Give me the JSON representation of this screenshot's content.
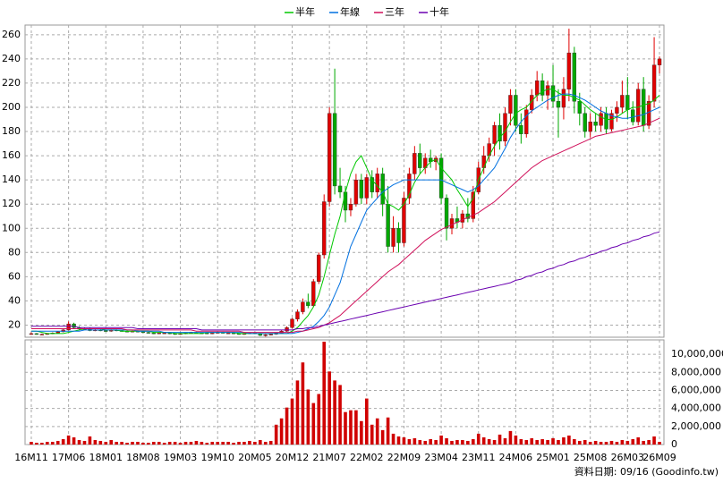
{
  "chart_data": {
    "type": "candlestick",
    "categories": [
      "16M11",
      null,
      null,
      null,
      null,
      null,
      null,
      "17M06",
      null,
      null,
      null,
      null,
      null,
      null,
      "18M01",
      null,
      null,
      null,
      null,
      null,
      null,
      "18M08",
      null,
      null,
      null,
      null,
      null,
      null,
      "19M03",
      null,
      null,
      null,
      null,
      null,
      null,
      "19M10",
      null,
      null,
      null,
      null,
      null,
      null,
      "20M05",
      null,
      null,
      null,
      null,
      null,
      null,
      "20M12",
      null,
      null,
      null,
      null,
      null,
      null,
      "21M07",
      null,
      null,
      null,
      null,
      null,
      null,
      "22M02",
      null,
      null,
      null,
      null,
      null,
      null,
      "22M09",
      null,
      null,
      null,
      null,
      null,
      null,
      "23M04",
      null,
      null,
      null,
      null,
      null,
      null,
      "23M11",
      null,
      null,
      null,
      null,
      null,
      null,
      "24M06",
      null,
      null,
      null,
      null,
      null,
      null,
      "25M01",
      null,
      null,
      null,
      null,
      null,
      null,
      "25M08",
      null,
      null,
      null,
      null,
      null,
      null,
      "26M03",
      null,
      null,
      null,
      null,
      null,
      "26M09"
    ],
    "ohlc": [
      [
        13,
        14,
        12,
        13
      ],
      [
        13,
        13.5,
        12,
        12.5
      ],
      [
        12.5,
        13,
        12,
        12.5
      ],
      [
        12.5,
        13.5,
        12,
        13
      ],
      [
        13,
        14,
        12.5,
        13.5
      ],
      [
        13.5,
        15,
        13,
        14.5
      ],
      [
        14.5,
        17,
        14,
        16
      ],
      [
        16,
        23,
        15.5,
        21
      ],
      [
        21,
        22,
        17,
        18
      ],
      [
        18,
        19,
        16,
        17
      ],
      [
        17,
        18,
        16,
        16.5
      ],
      [
        16.5,
        18,
        15,
        15.5
      ],
      [
        15.5,
        17,
        15,
        16
      ],
      [
        16,
        17,
        15,
        15.5
      ],
      [
        15.5,
        16,
        14.5,
        15
      ],
      [
        15,
        16.5,
        14.5,
        16
      ],
      [
        16,
        16.5,
        15,
        15.5
      ],
      [
        15.5,
        16,
        14.5,
        15
      ],
      [
        15,
        15.5,
        14,
        14.5
      ],
      [
        14.5,
        15.5,
        14,
        15
      ],
      [
        15,
        15.5,
        14,
        14.5
      ],
      [
        14.5,
        15,
        13.5,
        14
      ],
      [
        14,
        14.5,
        13,
        13.5
      ],
      [
        13.5,
        14,
        12.5,
        13
      ],
      [
        13,
        14,
        12.5,
        13.5
      ],
      [
        13.5,
        14,
        13,
        13.5
      ],
      [
        13.5,
        14,
        12.5,
        13
      ],
      [
        13,
        13.5,
        12,
        12.5
      ],
      [
        12.5,
        13.5,
        12,
        13
      ],
      [
        13,
        14,
        12.5,
        13.5
      ],
      [
        13.5,
        14.5,
        13,
        14
      ],
      [
        14,
        14.5,
        13,
        13.5
      ],
      [
        13.5,
        14,
        13,
        13.5
      ],
      [
        13.5,
        14,
        12.5,
        13
      ],
      [
        13,
        14,
        12.5,
        13.5
      ],
      [
        13.5,
        14.5,
        13,
        14
      ],
      [
        14,
        14.5,
        13,
        13.5
      ],
      [
        13.5,
        14,
        13,
        13.5
      ],
      [
        13.5,
        14,
        12.5,
        13
      ],
      [
        13,
        13.5,
        12,
        12.5
      ],
      [
        12.5,
        13.5,
        12,
        13
      ],
      [
        13,
        14,
        12.5,
        13.5
      ],
      [
        13.5,
        14,
        12.5,
        13
      ],
      [
        13,
        13.5,
        11,
        11.5
      ],
      [
        11.5,
        12.5,
        10.5,
        12
      ],
      [
        12,
        13,
        11.5,
        12.5
      ],
      [
        12.5,
        14,
        12,
        13.5
      ],
      [
        13.5,
        16,
        13,
        15
      ],
      [
        15,
        19,
        14.5,
        18
      ],
      [
        18,
        26,
        17,
        25
      ],
      [
        25,
        33,
        23,
        31
      ],
      [
        31,
        42,
        29,
        39
      ],
      [
        39,
        46,
        34,
        36
      ],
      [
        36,
        58,
        35,
        56
      ],
      [
        56,
        80,
        54,
        78
      ],
      [
        78,
        128,
        75,
        122
      ],
      [
        122,
        200,
        118,
        195
      ],
      [
        195,
        232,
        128,
        135
      ],
      [
        135,
        150,
        125,
        130
      ],
      [
        130,
        135,
        105,
        115
      ],
      [
        115,
        125,
        110,
        120
      ],
      [
        120,
        145,
        118,
        140
      ],
      [
        140,
        145,
        120,
        125
      ],
      [
        125,
        145,
        120,
        142
      ],
      [
        142,
        148,
        125,
        130
      ],
      [
        130,
        150,
        125,
        145
      ],
      [
        145,
        150,
        110,
        120
      ],
      [
        120,
        135,
        80,
        85
      ],
      [
        85,
        110,
        80,
        100
      ],
      [
        100,
        105,
        80,
        88
      ],
      [
        88,
        130,
        85,
        125
      ],
      [
        125,
        150,
        120,
        145
      ],
      [
        145,
        168,
        140,
        162
      ],
      [
        162,
        170,
        145,
        150
      ],
      [
        150,
        162,
        145,
        158
      ],
      [
        158,
        165,
        150,
        155
      ],
      [
        155,
        160,
        148,
        158
      ],
      [
        158,
        162,
        120,
        125
      ],
      [
        125,
        128,
        90,
        100
      ],
      [
        100,
        112,
        95,
        108
      ],
      [
        108,
        118,
        100,
        105
      ],
      [
        105,
        115,
        100,
        112
      ],
      [
        112,
        125,
        105,
        108
      ],
      [
        108,
        135,
        105,
        130
      ],
      [
        130,
        155,
        128,
        150
      ],
      [
        150,
        168,
        145,
        160
      ],
      [
        160,
        175,
        155,
        170
      ],
      [
        170,
        188,
        160,
        185
      ],
      [
        185,
        195,
        165,
        172
      ],
      [
        172,
        200,
        168,
        195
      ],
      [
        195,
        215,
        185,
        210
      ],
      [
        210,
        215,
        180,
        185
      ],
      [
        185,
        195,
        170,
        178
      ],
      [
        178,
        202,
        175,
        198
      ],
      [
        198,
        215,
        195,
        210
      ],
      [
        210,
        230,
        205,
        222
      ],
      [
        222,
        228,
        205,
        210
      ],
      [
        210,
        222,
        198,
        218
      ],
      [
        218,
        235,
        200,
        205
      ],
      [
        205,
        215,
        175,
        200
      ],
      [
        200,
        225,
        190,
        215
      ],
      [
        215,
        265,
        205,
        245
      ],
      [
        245,
        250,
        195,
        205
      ],
      [
        205,
        212,
        185,
        195
      ],
      [
        195,
        200,
        175,
        180
      ],
      [
        180,
        195,
        175,
        188
      ],
      [
        188,
        195,
        180,
        185
      ],
      [
        185,
        200,
        180,
        195
      ],
      [
        195,
        200,
        178,
        182
      ],
      [
        182,
        198,
        180,
        195
      ],
      [
        195,
        205,
        188,
        200
      ],
      [
        200,
        222,
        195,
        210
      ],
      [
        210,
        225,
        190,
        198
      ],
      [
        198,
        205,
        185,
        188
      ],
      [
        188,
        220,
        185,
        215
      ],
      [
        215,
        225,
        180,
        185
      ],
      [
        185,
        210,
        182,
        205
      ],
      [
        205,
        258,
        200,
        235
      ],
      [
        235,
        242,
        228,
        240
      ]
    ],
    "up_color": "#e00000",
    "down_color": "#00a800",
    "ylim": [
      10,
      268
    ],
    "yticks": [
      20,
      40,
      60,
      80,
      100,
      120,
      140,
      160,
      180,
      200,
      220,
      240,
      260
    ],
    "grid": true,
    "series": [
      {
        "name": "半年",
        "color": "#00c800",
        "values": [
          15,
          15,
          14,
          13,
          13,
          13,
          13,
          14,
          15,
          16,
          17,
          17,
          17,
          17,
          16,
          16,
          16,
          15,
          15,
          15,
          15,
          15,
          15,
          14,
          14,
          14,
          14,
          13,
          13,
          13,
          13,
          13,
          13,
          14,
          14,
          14,
          14,
          14,
          14,
          13,
          13,
          13,
          13,
          13,
          13,
          13,
          13,
          13,
          13,
          15,
          18,
          23,
          28,
          35,
          45,
          60,
          78,
          95,
          110,
          130,
          145,
          155,
          160,
          150,
          140,
          135,
          130,
          120,
          118,
          115,
          120,
          128,
          138,
          145,
          150,
          155,
          157,
          150,
          145,
          140,
          132,
          125,
          118,
          125,
          140,
          150,
          160,
          168,
          175,
          180,
          188,
          195,
          198,
          200,
          205,
          210,
          213,
          215,
          215,
          212,
          210,
          210,
          208,
          206,
          202,
          198,
          195,
          192,
          190,
          190,
          192,
          195,
          198,
          200,
          200,
          202,
          203,
          206,
          210
        ]
      },
      {
        "name": "年線",
        "color": "#0070e0",
        "values": [
          15,
          15,
          15,
          15,
          15,
          15,
          15,
          15,
          15,
          15,
          16,
          16,
          16,
          16,
          16,
          16,
          16,
          16,
          16,
          16,
          15,
          15,
          15,
          15,
          15,
          14,
          14,
          14,
          14,
          14,
          14,
          14,
          14,
          14,
          14,
          14,
          14,
          14,
          14,
          14,
          14,
          13,
          13,
          13,
          13,
          13,
          13,
          13,
          13,
          13,
          14,
          15,
          17,
          19,
          23,
          28,
          35,
          45,
          55,
          70,
          85,
          95,
          105,
          115,
          120,
          125,
          130,
          133,
          136,
          138,
          140,
          140,
          140,
          140,
          140,
          140,
          140,
          140,
          138,
          136,
          134,
          132,
          130,
          132,
          135,
          140,
          145,
          150,
          158,
          166,
          175,
          182,
          188,
          193,
          197,
          200,
          203,
          206,
          208,
          210,
          211,
          211,
          210,
          208,
          206,
          203,
          200,
          197,
          195,
          193,
          192,
          191,
          191,
          192,
          193,
          194,
          196,
          198,
          200
        ]
      },
      {
        "name": "三年",
        "color": "#d0105a",
        "values": [
          17,
          17,
          17,
          17,
          17,
          17,
          17,
          17,
          17,
          17,
          17,
          17,
          17,
          17,
          17,
          17,
          17,
          17,
          16,
          16,
          16,
          16,
          16,
          16,
          16,
          16,
          16,
          16,
          16,
          16,
          16,
          15,
          15,
          15,
          15,
          15,
          15,
          15,
          15,
          15,
          14,
          14,
          14,
          14,
          14,
          14,
          14,
          14,
          14,
          14,
          15,
          15,
          16,
          17,
          18,
          20,
          22,
          25,
          28,
          32,
          36,
          40,
          44,
          48,
          52,
          56,
          60,
          64,
          67,
          70,
          74,
          78,
          82,
          86,
          90,
          93,
          96,
          99,
          101,
          103,
          105,
          107,
          109,
          111,
          113,
          116,
          119,
          122,
          126,
          130,
          134,
          138,
          142,
          146,
          150,
          153,
          156,
          158,
          160,
          162,
          164,
          166,
          168,
          170,
          172,
          174,
          176,
          177,
          178,
          179,
          180,
          181,
          182,
          183,
          184,
          185,
          187,
          189,
          191
        ]
      },
      {
        "name": "十年",
        "color": "#6a00b0",
        "values": [
          19,
          19,
          19,
          19,
          19,
          19,
          19,
          19,
          19,
          18,
          18,
          18,
          18,
          18,
          18,
          18,
          18,
          18,
          18,
          18,
          17,
          17,
          17,
          17,
          17,
          17,
          17,
          17,
          17,
          17,
          17,
          17,
          16,
          16,
          16,
          16,
          16,
          16,
          16,
          16,
          16,
          16,
          16,
          16,
          16,
          16,
          16,
          16,
          16,
          16,
          17,
          17,
          18,
          18,
          19,
          20,
          21,
          22,
          23,
          24,
          25,
          26,
          27,
          28,
          29,
          30,
          31,
          32,
          33,
          34,
          35,
          36,
          37,
          38,
          39,
          40,
          41,
          42,
          43,
          44,
          45,
          46,
          47,
          48,
          49,
          50,
          51,
          52,
          53,
          54,
          55,
          57,
          58,
          60,
          61,
          63,
          64,
          66,
          67,
          69,
          70,
          72,
          73,
          75,
          76,
          78,
          79,
          81,
          82,
          84,
          85,
          87,
          88,
          90,
          91,
          93,
          94,
          96,
          97
        ]
      }
    ],
    "volume": {
      "color": "#d00000",
      "values": [
        300000,
        200000,
        200000,
        300000,
        300000,
        400000,
        600000,
        1000000,
        800000,
        500000,
        400000,
        900000,
        500000,
        400000,
        300000,
        500000,
        300000,
        300000,
        200000,
        300000,
        300000,
        200000,
        200000,
        300000,
        300000,
        200000,
        300000,
        300000,
        200000,
        300000,
        300000,
        400000,
        300000,
        200000,
        300000,
        300000,
        300000,
        300000,
        200000,
        300000,
        300000,
        400000,
        300000,
        500000,
        300000,
        400000,
        2200000,
        2900000,
        4100000,
        5100000,
        7100000,
        9100000,
        6100000,
        4600000,
        5600000,
        11400000,
        8100000,
        7100000,
        6600000,
        3600000,
        3800000,
        3800000,
        2600000,
        5100000,
        2200000,
        2900000,
        1600000,
        3000000,
        1200000,
        900000,
        800000,
        600000,
        700000,
        500000,
        400000,
        600000,
        500000,
        1000000,
        700000,
        400000,
        500000,
        500000,
        400000,
        600000,
        1200000,
        800000,
        600000,
        500000,
        1100000,
        700000,
        1500000,
        1000000,
        600000,
        500000,
        700000,
        500000,
        600000,
        500000,
        700000,
        500000,
        800000,
        1000000,
        600000,
        400000,
        500000,
        300000,
        400000,
        300000,
        300000,
        400000,
        300000,
        500000,
        400000,
        600000,
        800000,
        400000,
        500000,
        900000,
        300000
      ],
      "ylim": [
        0,
        11600000
      ],
      "yticks": [
        0,
        {
          "value": 2000000,
          "label": "2,000,000"
        },
        {
          "value": 4000000,
          "label": "4,000,000"
        },
        {
          "value": 6000000,
          "label": "6,000,000"
        },
        {
          "value": 8000000,
          "label": "8,000,000"
        },
        {
          "value": 10000000,
          "label": "10,000,000"
        }
      ]
    },
    "footnote": "資料日期: 09/16 (Goodinfo.tw)"
  }
}
